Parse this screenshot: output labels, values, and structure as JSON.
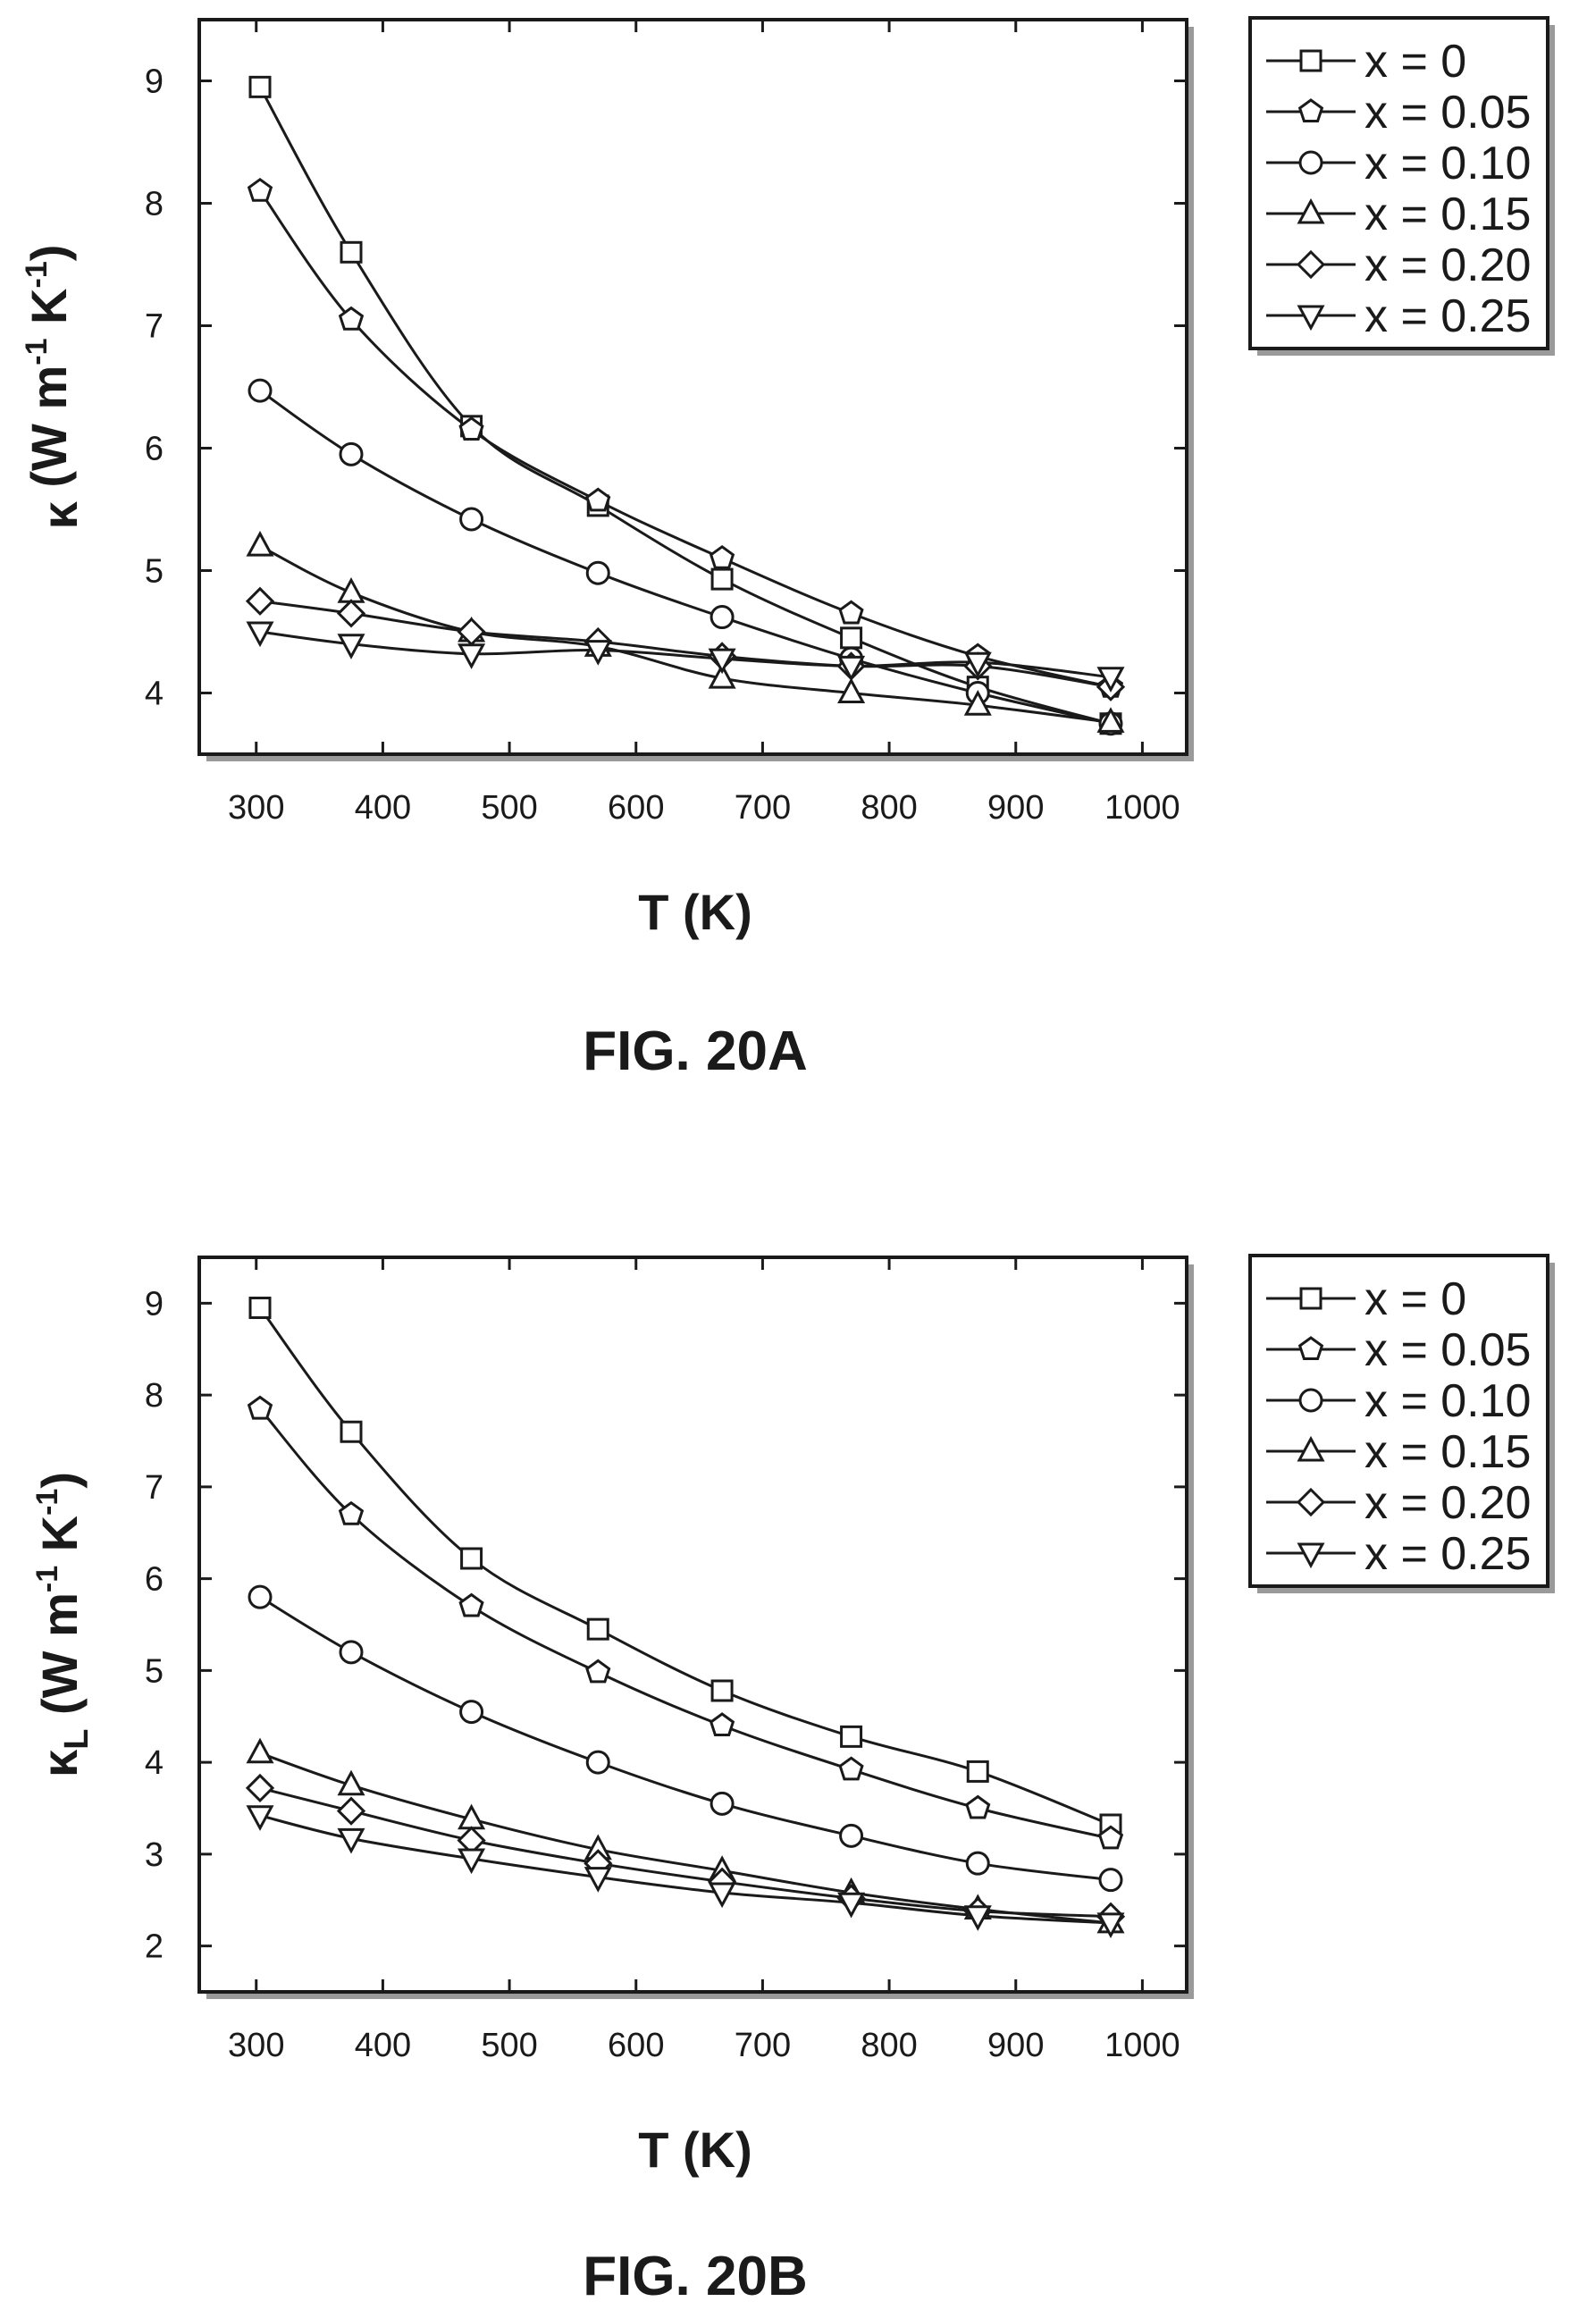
{
  "chart_data": [
    {
      "type": "line",
      "caption": "FIG. 20A",
      "xlabel": "T (K)",
      "ylabel": {
        "symbol": "κ",
        "sub": "",
        "unit": " (W m",
        "e1": "-1",
        "mid": " K",
        "e2": "-1",
        "end": ")"
      },
      "xlim": [
        255,
        1035
      ],
      "ylim": [
        3.5,
        9.5
      ],
      "xticks": [
        300,
        400,
        500,
        600,
        700,
        800,
        900,
        1000
      ],
      "yticks": [
        4,
        5,
        6,
        7,
        8,
        9
      ],
      "legend": "outside-right",
      "series": [
        {
          "name": "x = 0",
          "marker": "square",
          "x": [
            303,
            375,
            470,
            570,
            668,
            770,
            870,
            975
          ],
          "y": [
            8.95,
            7.6,
            6.18,
            5.53,
            4.93,
            4.45,
            4.05,
            3.75
          ]
        },
        {
          "name": "x = 0.05",
          "marker": "pentagon",
          "x": [
            303,
            375,
            470,
            570,
            668,
            770,
            870,
            975
          ],
          "y": [
            8.1,
            7.05,
            6.15,
            5.57,
            5.1,
            4.65,
            4.3,
            4.05
          ]
        },
        {
          "name": "x = 0.10",
          "marker": "circle",
          "x": [
            303,
            375,
            470,
            570,
            668,
            770,
            870,
            975
          ],
          "y": [
            6.47,
            5.95,
            5.42,
            4.98,
            4.62,
            4.28,
            4.0,
            3.75
          ]
        },
        {
          "name": "x = 0.15",
          "marker": "triangle-up",
          "x": [
            303,
            375,
            470,
            570,
            668,
            770,
            870,
            975
          ],
          "y": [
            5.2,
            4.82,
            4.5,
            4.38,
            4.12,
            4.0,
            3.9,
            3.76
          ]
        },
        {
          "name": "x = 0.20",
          "marker": "diamond",
          "x": [
            303,
            375,
            470,
            570,
            668,
            770,
            870,
            975
          ],
          "y": [
            4.75,
            4.65,
            4.5,
            4.42,
            4.3,
            4.22,
            4.22,
            4.05
          ]
        },
        {
          "name": "x = 0.25",
          "marker": "triangle-down",
          "x": [
            303,
            375,
            470,
            570,
            668,
            770,
            870,
            975
          ],
          "y": [
            4.5,
            4.4,
            4.32,
            4.35,
            4.28,
            4.22,
            4.25,
            4.13
          ]
        }
      ]
    },
    {
      "type": "line",
      "caption": "FIG. 20B",
      "xlabel": "T (K)",
      "ylabel": {
        "symbol": "κ",
        "sub": "L",
        "unit": " (W m",
        "e1": "-1",
        "mid": " K",
        "e2": "-1",
        "end": ")"
      },
      "xlim": [
        255,
        1035
      ],
      "ylim": [
        1.5,
        9.5
      ],
      "xticks": [
        300,
        400,
        500,
        600,
        700,
        800,
        900,
        1000
      ],
      "yticks": [
        2,
        3,
        4,
        5,
        6,
        7,
        8,
        9
      ],
      "legend": "outside-right",
      "series": [
        {
          "name": "x = 0",
          "marker": "square",
          "x": [
            303,
            375,
            470,
            570,
            668,
            770,
            870,
            975
          ],
          "y": [
            8.95,
            7.6,
            6.22,
            5.45,
            4.78,
            4.28,
            3.9,
            3.32
          ]
        },
        {
          "name": "x = 0.05",
          "marker": "pentagon",
          "x": [
            303,
            375,
            470,
            570,
            668,
            770,
            870,
            975
          ],
          "y": [
            7.85,
            6.7,
            5.7,
            4.98,
            4.4,
            3.92,
            3.5,
            3.17
          ]
        },
        {
          "name": "x = 0.10",
          "marker": "circle",
          "x": [
            303,
            375,
            470,
            570,
            668,
            770,
            870,
            975
          ],
          "y": [
            5.8,
            5.2,
            4.55,
            4.0,
            3.55,
            3.2,
            2.9,
            2.72
          ]
        },
        {
          "name": "x = 0.15",
          "marker": "triangle-up",
          "x": [
            303,
            375,
            470,
            570,
            668,
            770,
            870,
            975
          ],
          "y": [
            4.1,
            3.75,
            3.38,
            3.05,
            2.82,
            2.58,
            2.4,
            2.25
          ]
        },
        {
          "name": "x = 0.20",
          "marker": "diamond",
          "x": [
            303,
            375,
            470,
            570,
            668,
            770,
            870,
            975
          ],
          "y": [
            3.72,
            3.47,
            3.15,
            2.9,
            2.7,
            2.52,
            2.38,
            2.32
          ]
        },
        {
          "name": "x = 0.25",
          "marker": "triangle-down",
          "x": [
            303,
            375,
            470,
            570,
            668,
            770,
            870,
            975
          ],
          "y": [
            3.42,
            3.17,
            2.95,
            2.75,
            2.58,
            2.47,
            2.33,
            2.25
          ]
        }
      ]
    }
  ]
}
